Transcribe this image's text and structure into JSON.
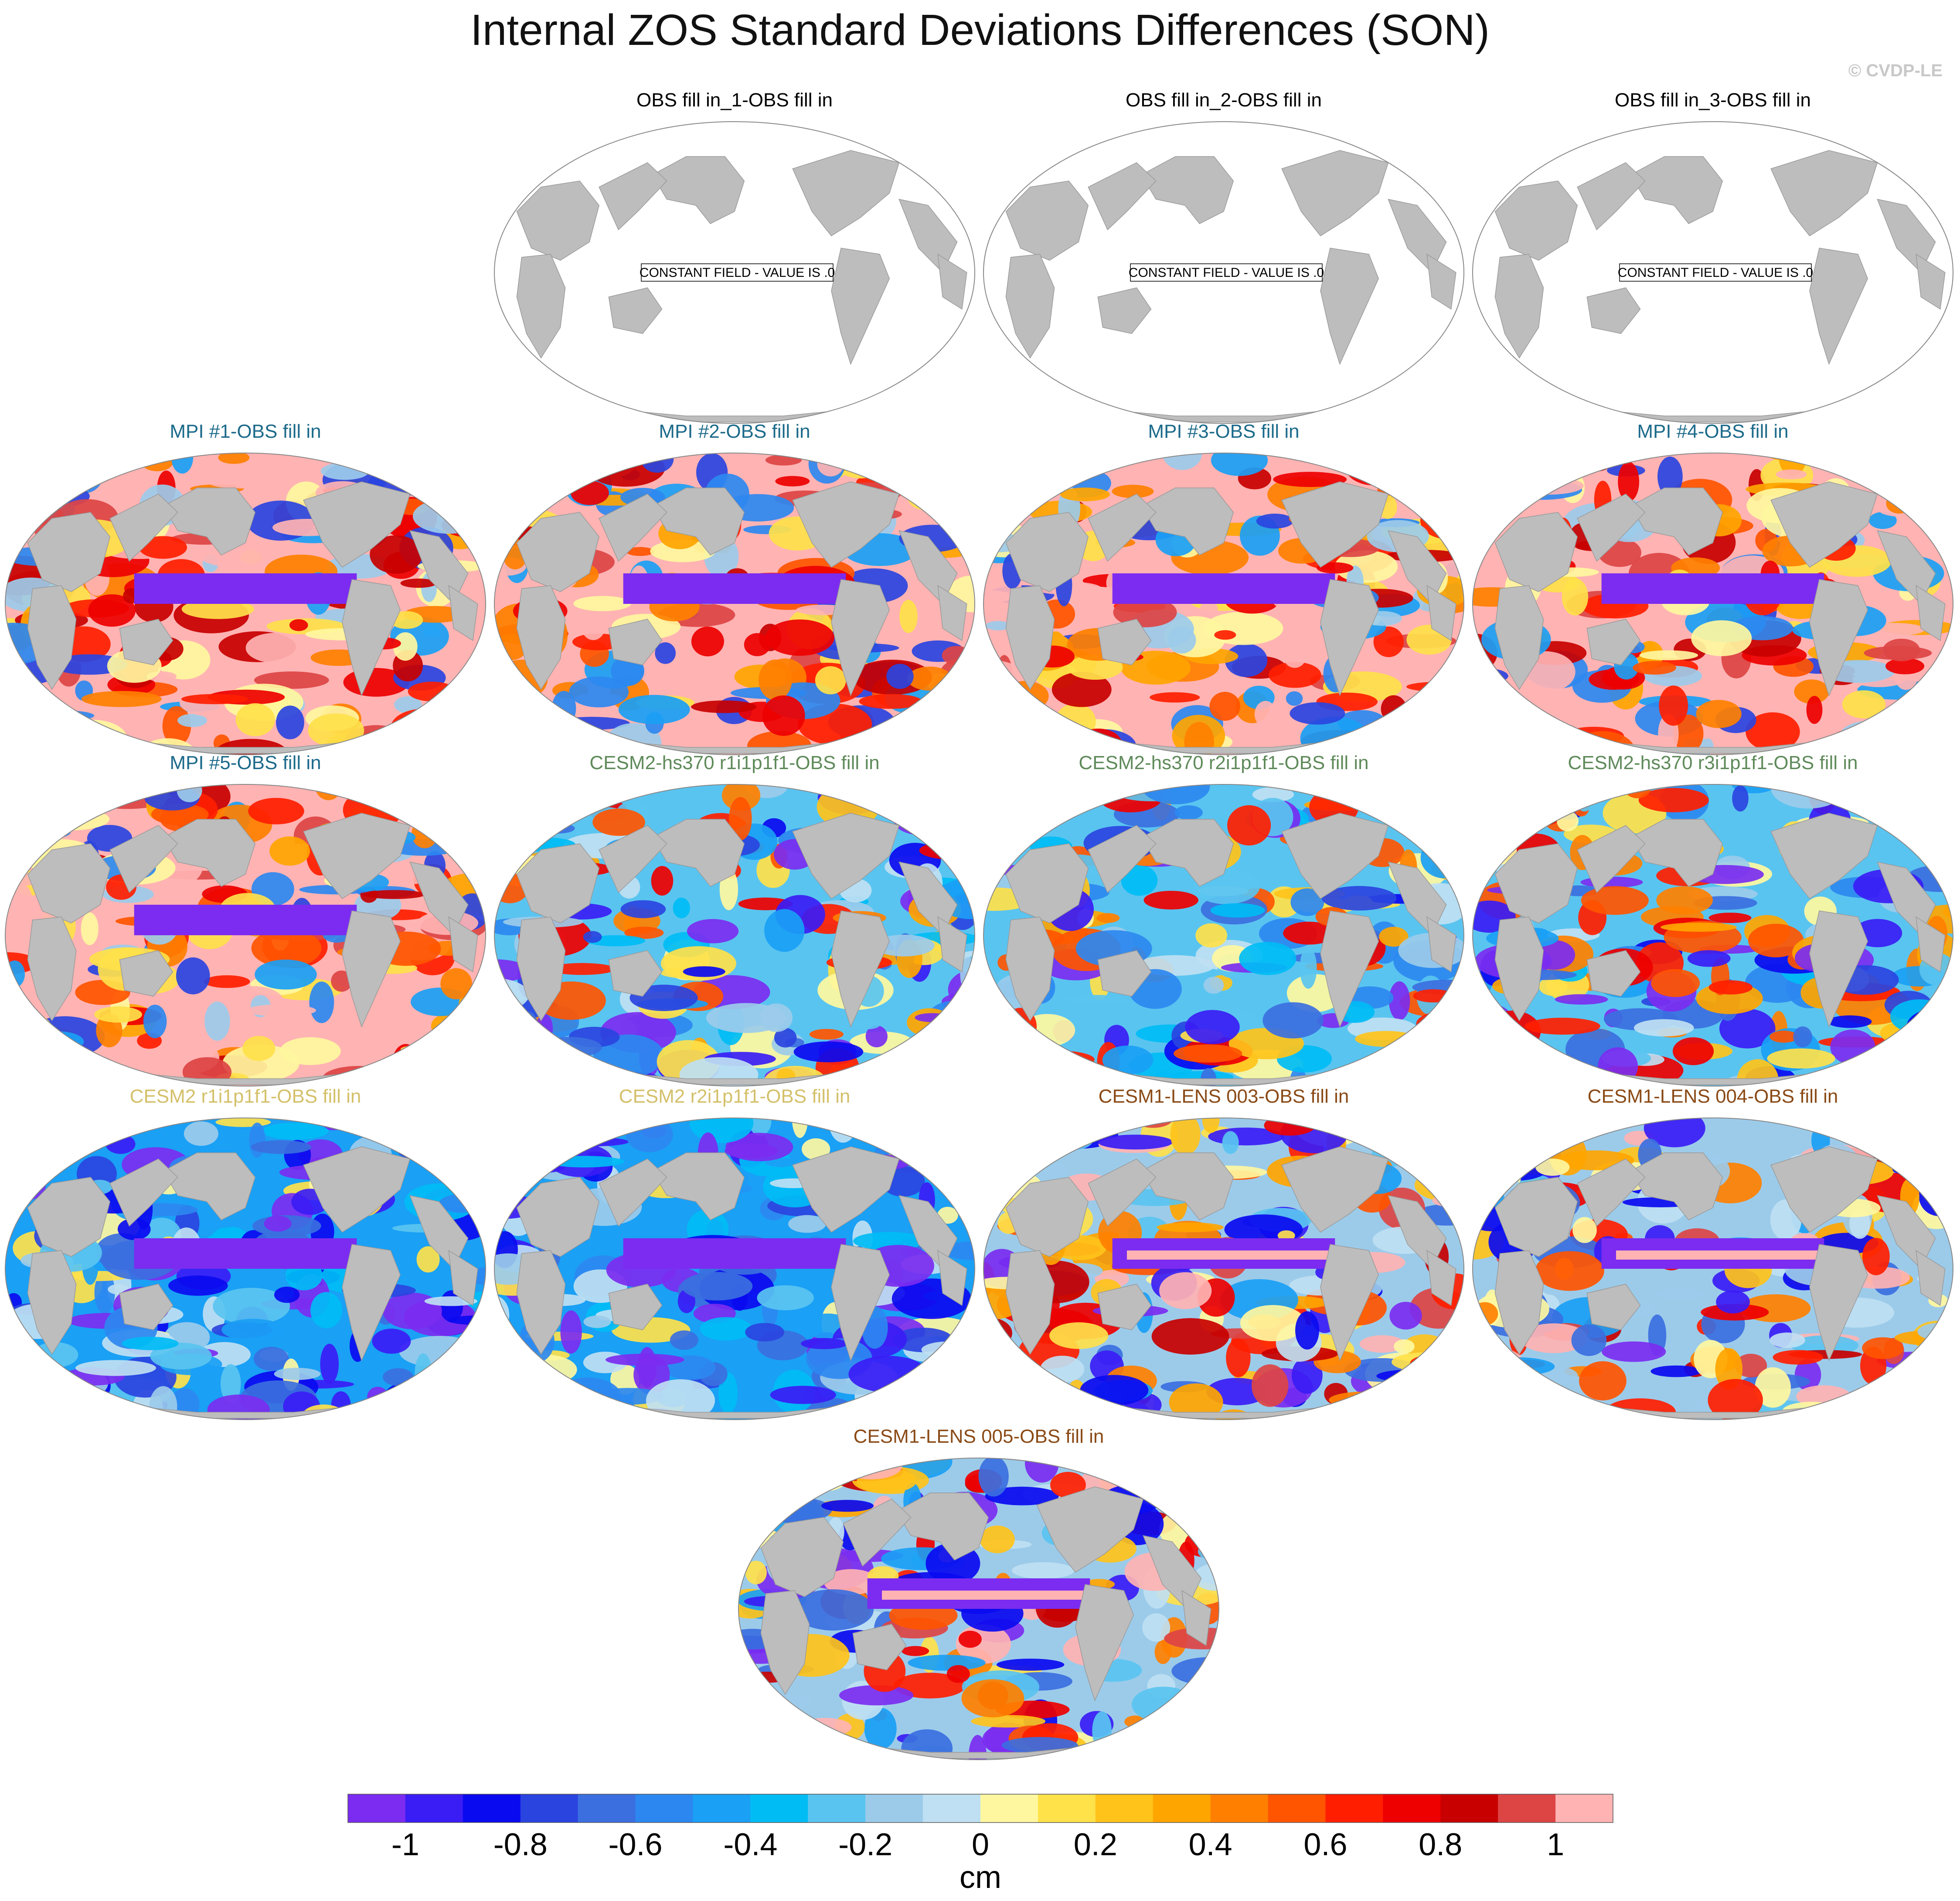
{
  "title": "Internal ZOS Standard Deviations Differences (SON)",
  "credit": "© CVDP-LE",
  "colors": {
    "land": "#bdbdbd",
    "ocean_const": "#ffffff",
    "outline": "#888888",
    "obs_title": "#000000",
    "mpi_title": "#1c6a8a",
    "hs370_title": "#5f8a5a",
    "cesm2_title": "#d4c06a",
    "lens_title": "#8a4a16"
  },
  "panels": [
    {
      "title": "OBS fill in_1-OBS fill in",
      "group": "obs",
      "pattern": "constant",
      "const_label": "CONSTANT FIELD - VALUE IS .0"
    },
    {
      "title": "OBS fill in_2-OBS fill in",
      "group": "obs",
      "pattern": "constant",
      "const_label": "CONSTANT FIELD - VALUE IS .0"
    },
    {
      "title": "OBS fill in_3-OBS fill in",
      "group": "obs",
      "pattern": "constant",
      "const_label": "CONSTANT FIELD - VALUE IS .0"
    },
    {
      "title": "MPI #1-OBS fill in",
      "group": "mpi",
      "pattern": "mpi"
    },
    {
      "title": "MPI #2-OBS fill in",
      "group": "mpi",
      "pattern": "mpi"
    },
    {
      "title": "MPI #3-OBS fill in",
      "group": "mpi",
      "pattern": "mpi"
    },
    {
      "title": "MPI #4-OBS fill in",
      "group": "mpi",
      "pattern": "mpi"
    },
    {
      "title": "MPI #5-OBS fill in",
      "group": "mpi",
      "pattern": "mpi"
    },
    {
      "title": "CESM2-hs370 r1i1p1f1-OBS fill in",
      "group": "hs370",
      "pattern": "hs370"
    },
    {
      "title": "CESM2-hs370 r2i1p1f1-OBS fill in",
      "group": "hs370",
      "pattern": "hs370"
    },
    {
      "title": "CESM2-hs370 r3i1p1f1-OBS fill in",
      "group": "hs370",
      "pattern": "hs370"
    },
    {
      "title": "CESM2 r1i1p1f1-OBS fill in",
      "group": "cesm2",
      "pattern": "cesm2"
    },
    {
      "title": "CESM2 r2i1p1f1-OBS fill in",
      "group": "cesm2",
      "pattern": "cesm2"
    },
    {
      "title": "CESM1-LENS 003-OBS fill in",
      "group": "lens",
      "pattern": "lens"
    },
    {
      "title": "CESM1-LENS 004-OBS fill in",
      "group": "lens",
      "pattern": "lens"
    },
    {
      "title": "CESM1-LENS 005-OBS fill in",
      "group": "lens",
      "pattern": "lens"
    }
  ],
  "colorbar": {
    "colors": [
      "#7b2cf0",
      "#3a1cf5",
      "#0a0af0",
      "#2a44e0",
      "#3b6fe0",
      "#2c88f0",
      "#1aa0f5",
      "#00bcf5",
      "#5ac4f0",
      "#9ccbea",
      "#bfe0f2",
      "#fff7a0",
      "#ffe14a",
      "#ffc31a",
      "#ffa500",
      "#ff8000",
      "#ff5500",
      "#ff1e00",
      "#ee0000",
      "#c80000",
      "#dd4444",
      "#ffb3b3"
    ],
    "tick_labels": [
      "-1",
      "-0.8",
      "-0.6",
      "-0.4",
      "-0.2",
      "0",
      "0.2",
      "0.4",
      "0.6",
      "0.8",
      "1"
    ],
    "units": "cm"
  }
}
